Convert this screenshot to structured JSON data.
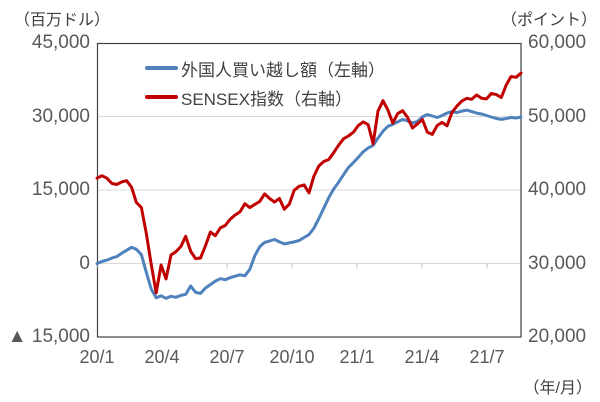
{
  "chart_data": {
    "type": "line",
    "title": "",
    "x_description": "weekly data, 2020/1 through 2021/8",
    "x_tick_labels": [
      "20/1",
      "20/4",
      "20/7",
      "20/10",
      "21/1",
      "21/4",
      "21/7"
    ],
    "x_axis_unit": "（年/月）",
    "left_axis": {
      "unit": "（百万ドル）",
      "ticks": [
        "45,000",
        "30,000",
        "15,000",
        "0",
        "▲ 15,000"
      ],
      "range": [
        -15000,
        45000
      ],
      "grid": true
    },
    "right_axis": {
      "unit": "（ポイント）",
      "ticks": [
        "60,000",
        "50,000",
        "40,000",
        "30,000",
        "20,000"
      ],
      "range": [
        20000,
        60000
      ]
    },
    "legend_position": "top-inside",
    "series": [
      {
        "name": "外国人買い越し額（左軸）",
        "axis": "left",
        "color": "#4F81BD",
        "values": [
          0,
          400,
          700,
          1100,
          1400,
          2100,
          2700,
          3300,
          2900,
          1800,
          -1800,
          -5200,
          -7000,
          -6600,
          -7100,
          -6700,
          -6900,
          -6500,
          -6300,
          -4600,
          -5900,
          -6100,
          -5000,
          -4300,
          -3600,
          -3100,
          -3300,
          -2900,
          -2600,
          -2300,
          -2500,
          -1200,
          1600,
          3400,
          4300,
          4600,
          4900,
          4400,
          4000,
          4200,
          4400,
          4700,
          5300,
          5900,
          7200,
          9200,
          11300,
          13400,
          15200,
          16600,
          18100,
          19600,
          20600,
          21700,
          22800,
          23600,
          24100,
          25600,
          27000,
          28000,
          28400,
          28900,
          29400,
          29100,
          28700,
          29000,
          29900,
          30400,
          30100,
          29800,
          30200,
          30700,
          31000,
          30800,
          31100,
          31300,
          31000,
          30700,
          30500,
          30200,
          29900,
          29600,
          29400,
          29600,
          29800,
          29700,
          29900
        ]
      },
      {
        "name": "SENSEX指数（右軸）",
        "axis": "right",
        "color": "#C00000",
        "values": [
          41600,
          41950,
          41600,
          40900,
          40750,
          41100,
          41260,
          40400,
          38300,
          37600,
          34100,
          29900,
          26000,
          29800,
          27900,
          31160,
          31600,
          32300,
          33700,
          31640,
          30670,
          30750,
          32420,
          34290,
          33780,
          34850,
          35170,
          36020,
          36590,
          37020,
          38130,
          37610,
          38040,
          38430,
          39470,
          38850,
          38360,
          38850,
          37390,
          38070,
          39960,
          40510,
          40690,
          39610,
          41890,
          43280,
          43880,
          44150,
          45080,
          46100,
          46960,
          47350,
          47870,
          48780,
          49270,
          48880,
          46290,
          50730,
          52150,
          50890,
          49100,
          50400,
          50790,
          49860,
          48440,
          49010,
          49590,
          47880,
          47570,
          48780,
          49200,
          48730,
          50540,
          51420,
          52100,
          52480,
          52340,
          52930,
          52480,
          52390,
          53140,
          52980,
          52590,
          54280,
          55440,
          55330,
          55900
        ]
      }
    ],
    "colors": {
      "grid": "#D9D9D9",
      "border": "#404040",
      "tick_mark": "#BFBFBF",
      "axis_text": "#595959",
      "label_text": "#404040"
    }
  }
}
